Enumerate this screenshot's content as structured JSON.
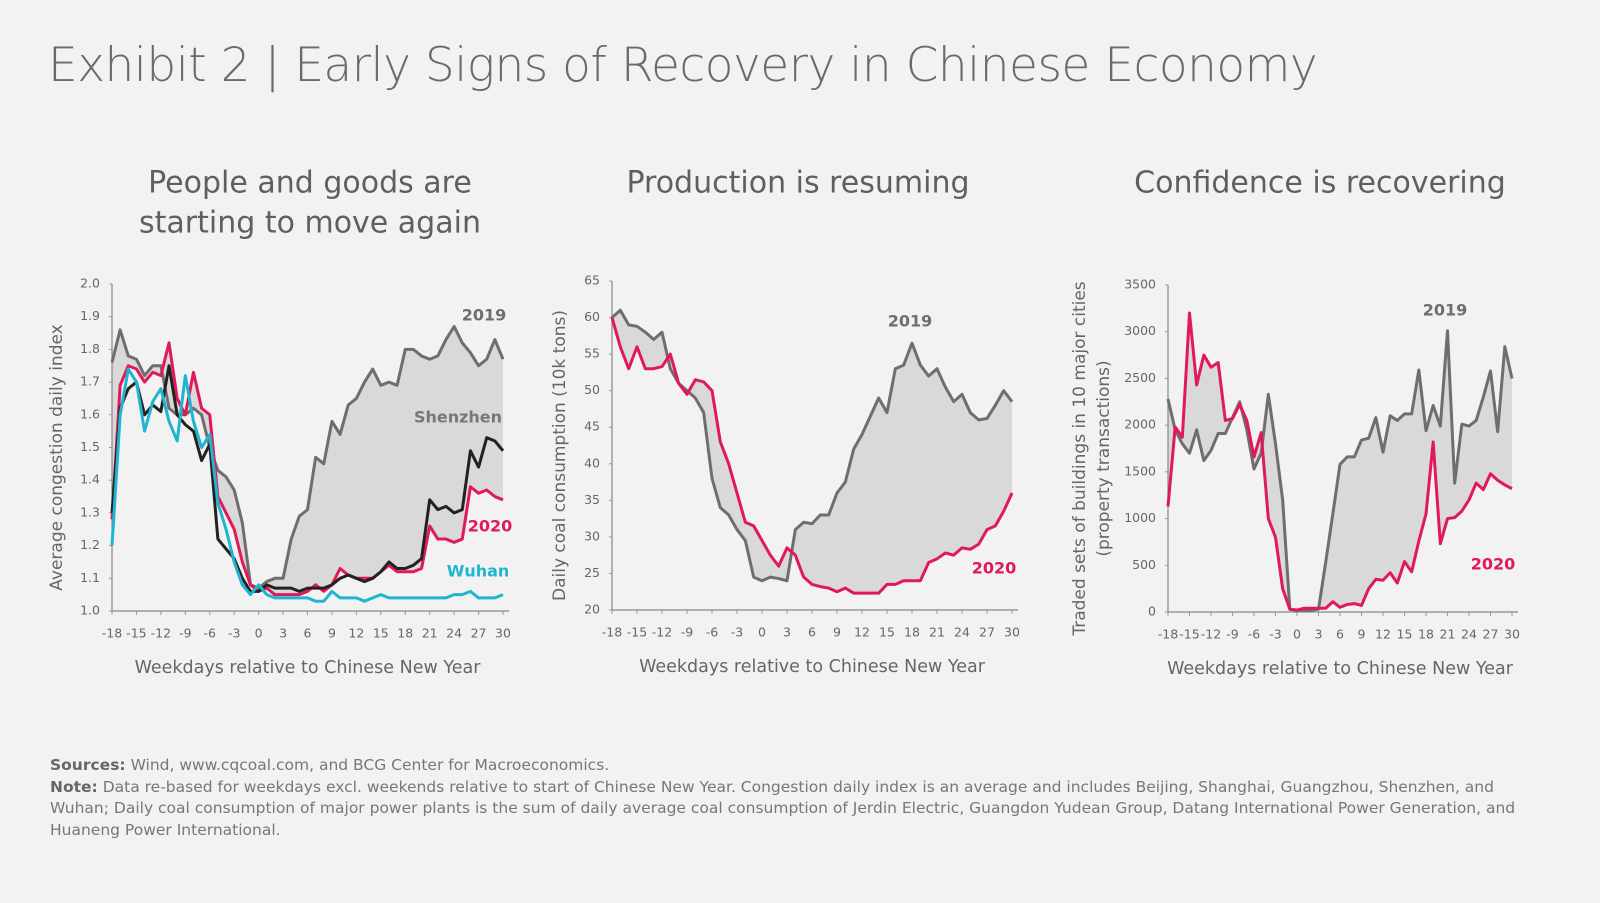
{
  "header": {
    "title": "Exhibit 2 | Early Signs of Recovery in Chinese Economy"
  },
  "footer": {
    "sources_label": "Sources:",
    "sources": "Wind, www.cqcoal.com, and BCG Center for Macroeconomics.",
    "note_label": "Note:",
    "note": "Data re-based for weekdays excl. weekends relative to start of Chinese New Year. Congestion daily index is an average and includes Beijing, Shanghai, Guangzhou, Shenzhen, and Wuhan; Daily coal consumption of major power plants is the sum of daily average coal consumption of Jerdin Electric, Guangdon Yudean Group, Datang International Power Generation, and Huaneng Power International."
  },
  "chart_data": [
    {
      "type": "line",
      "title": [
        "People and goods are",
        "starting to move again"
      ],
      "xlabel": "Weekdays relative to Chinese New Year",
      "ylabel": [
        "Average congestion daily index"
      ],
      "x": [
        -18,
        -17,
        -16,
        -15,
        -14,
        -13,
        -12,
        -11,
        -10,
        -9,
        -8,
        -7,
        -6,
        -5,
        -4,
        -3,
        -2,
        -1,
        0,
        1,
        2,
        3,
        4,
        5,
        6,
        7,
        8,
        9,
        10,
        11,
        12,
        13,
        14,
        15,
        16,
        17,
        18,
        19,
        20,
        21,
        22,
        23,
        24,
        25,
        26,
        27,
        28,
        29,
        30
      ],
      "xlim": [
        -18,
        30
      ],
      "xticks": [
        -18,
        -15,
        -12,
        -9,
        -6,
        -3,
        0,
        3,
        6,
        9,
        12,
        15,
        18,
        21,
        24,
        27,
        30
      ],
      "ylim": [
        1.0,
        2.0
      ],
      "yticks": [
        {
          "value": 1.0,
          "label": "1.0"
        },
        1.1,
        1.2,
        1.3,
        1.4,
        1.5,
        1.6,
        1.7,
        1.8,
        1.9,
        {
          "value": 2.0,
          "label": "2.0"
        }
      ],
      "fill_color": "#d9d9d9",
      "series": [
        {
          "name": "2019",
          "color": "#6e6e6e",
          "values": [
            1.76,
            1.86,
            1.78,
            1.77,
            1.72,
            1.75,
            1.75,
            1.62,
            1.6,
            1.6,
            1.62,
            1.6,
            1.5,
            1.43,
            1.41,
            1.37,
            1.27,
            1.08,
            1.07,
            1.09,
            1.1,
            1.1,
            1.22,
            1.29,
            1.31,
            1.47,
            1.45,
            1.58,
            1.54,
            1.63,
            1.65,
            1.7,
            1.74,
            1.69,
            1.7,
            1.69,
            1.8,
            1.8,
            1.78,
            1.77,
            1.78,
            1.83,
            1.87,
            1.82,
            1.79,
            1.75,
            1.77,
            1.83,
            1.77
          ]
        },
        {
          "name": "2020",
          "color": "#e0195a",
          "values": [
            1.28,
            1.69,
            1.75,
            1.74,
            1.7,
            1.73,
            1.72,
            1.82,
            1.65,
            1.6,
            1.73,
            1.62,
            1.6,
            1.35,
            1.3,
            1.25,
            1.15,
            1.08,
            1.06,
            1.07,
            1.05,
            1.05,
            1.05,
            1.05,
            1.06,
            1.08,
            1.06,
            1.08,
            1.13,
            1.11,
            1.1,
            1.1,
            1.1,
            1.12,
            1.14,
            1.12,
            1.12,
            1.12,
            1.13,
            1.26,
            1.22,
            1.22,
            1.21,
            1.22,
            1.38,
            1.36,
            1.37,
            1.35,
            1.34
          ]
        },
        {
          "name": "Shenzhen",
          "color": "#222222",
          "values": [
            1.3,
            1.62,
            1.68,
            1.7,
            1.6,
            1.63,
            1.61,
            1.75,
            1.6,
            1.57,
            1.55,
            1.46,
            1.51,
            1.22,
            1.19,
            1.16,
            1.1,
            1.06,
            1.06,
            1.08,
            1.07,
            1.07,
            1.07,
            1.06,
            1.07,
            1.07,
            1.07,
            1.08,
            1.1,
            1.11,
            1.1,
            1.09,
            1.1,
            1.12,
            1.15,
            1.13,
            1.13,
            1.14,
            1.16,
            1.34,
            1.31,
            1.32,
            1.3,
            1.31,
            1.49,
            1.44,
            1.53,
            1.52,
            1.49
          ]
        },
        {
          "name": "Wuhan",
          "color": "#1fb5d1",
          "values": [
            1.2,
            1.6,
            1.74,
            1.7,
            1.55,
            1.64,
            1.68,
            1.58,
            1.52,
            1.72,
            1.58,
            1.5,
            1.54,
            1.33,
            1.25,
            1.15,
            1.08,
            1.05,
            1.08,
            1.05,
            1.04,
            1.04,
            1.04,
            1.04,
            1.04,
            1.03,
            1.03,
            1.06,
            1.04,
            1.04,
            1.04,
            1.03,
            1.04,
            1.05,
            1.04,
            1.04,
            1.04,
            1.04,
            1.04,
            1.04,
            1.04,
            1.04,
            1.05,
            1.05,
            1.06,
            1.04,
            1.04,
            1.04,
            1.05
          ]
        }
      ]
    },
    {
      "type": "line",
      "title": [
        "Production is resuming"
      ],
      "xlabel": "Weekdays relative to Chinese New Year",
      "ylabel": [
        "Daily coal consumption (10k tons)"
      ],
      "x": [
        -18,
        -17,
        -16,
        -15,
        -14,
        -13,
        -12,
        -11,
        -10,
        -9,
        -8,
        -7,
        -6,
        -5,
        -4,
        -3,
        -2,
        -1,
        0,
        1,
        2,
        3,
        4,
        5,
        6,
        7,
        8,
        9,
        10,
        11,
        12,
        13,
        14,
        15,
        16,
        17,
        18,
        19,
        20,
        21,
        22,
        23,
        24,
        25,
        26,
        27,
        28,
        29,
        30
      ],
      "xlim": [
        -18,
        30
      ],
      "xticks": [
        -18,
        -15,
        -12,
        -9,
        -6,
        -3,
        0,
        3,
        6,
        9,
        12,
        15,
        18,
        21,
        24,
        27,
        30
      ],
      "ylim": [
        20,
        65
      ],
      "yticks": [
        20,
        25,
        30,
        35,
        40,
        45,
        50,
        55,
        60,
        65
      ],
      "fill_color": "#d9d9d9",
      "series": [
        {
          "name": "2019",
          "color": "#6e6e6e",
          "values": [
            60,
            61,
            59,
            58.8,
            58,
            57,
            58,
            53,
            51,
            50,
            49,
            47,
            38,
            34,
            33,
            31,
            29.5,
            24.5,
            24,
            24.5,
            24.3,
            24,
            31,
            32,
            31.8,
            33,
            33,
            36,
            37.5,
            42,
            44,
            46.5,
            49,
            47,
            53,
            53.5,
            56.5,
            53.5,
            52,
            53,
            50.5,
            48.5,
            49.5,
            47,
            46,
            46.2,
            48,
            50,
            48.5
          ]
        },
        {
          "name": "2020",
          "color": "#e0195a",
          "values": [
            60,
            56,
            53,
            56,
            53,
            53,
            53.3,
            55,
            51,
            49.5,
            51.5,
            51.2,
            50,
            43,
            40,
            36,
            32,
            31.5,
            29.5,
            27.5,
            26,
            28.5,
            27.5,
            24.5,
            23.5,
            23.2,
            23,
            22.5,
            23,
            22.3,
            22.3,
            22.3,
            22.3,
            23.5,
            23.5,
            24,
            24,
            24,
            26.5,
            27,
            27.8,
            27.5,
            28.5,
            28.3,
            29,
            31,
            31.5,
            33.5,
            36
          ]
        }
      ]
    },
    {
      "type": "line",
      "title": [
        "Confidence is recovering"
      ],
      "xlabel": "Weekdays relative to Chinese New Year",
      "ylabel": [
        "Traded sets of buildings in 10 major cities",
        "(property transactions)"
      ],
      "x": [
        -18,
        -17,
        -16,
        -15,
        -14,
        -13,
        -12,
        -11,
        -10,
        -9,
        -8,
        -7,
        -6,
        -5,
        -4,
        -3,
        -2,
        -1,
        0,
        1,
        2,
        3,
        4,
        5,
        6,
        7,
        8,
        9,
        10,
        11,
        12,
        13,
        14,
        15,
        16,
        17,
        18,
        19,
        20,
        21,
        22,
        23,
        24,
        25,
        26,
        27,
        28,
        29,
        30
      ],
      "xlim": [
        -18,
        30
      ],
      "xticks": [
        -18,
        -15,
        -12,
        -9,
        -6,
        -3,
        0,
        3,
        6,
        9,
        12,
        15,
        18,
        21,
        24,
        27,
        30
      ],
      "ylim": [
        0,
        3500
      ],
      "yticks": [
        0,
        500,
        1000,
        1500,
        2000,
        2500,
        3000,
        3500
      ],
      "fill_color": "#d9d9d9",
      "series": [
        {
          "name": "2019",
          "color": "#6e6e6e",
          "values": [
            2280,
            1950,
            1800,
            1700,
            1950,
            1620,
            1730,
            1910,
            1910,
            2080,
            2250,
            1950,
            1530,
            1700,
            2330,
            1800,
            1200,
            30,
            20,
            20,
            20,
            30,
            530,
            1050,
            1580,
            1660,
            1660,
            1840,
            1860,
            2080,
            1710,
            2100,
            2050,
            2120,
            2120,
            2590,
            1940,
            2210,
            1990,
            3010,
            1380,
            2010,
            1990,
            2050,
            2300,
            2580,
            1930,
            2840,
            2500
          ]
        },
        {
          "name": "2020",
          "color": "#e0195a",
          "values": [
            1130,
            1980,
            1870,
            3200,
            2430,
            2750,
            2620,
            2670,
            2050,
            2070,
            2220,
            2050,
            1660,
            1920,
            1000,
            800,
            250,
            30,
            20,
            40,
            40,
            40,
            40,
            110,
            50,
            80,
            90,
            70,
            250,
            350,
            340,
            420,
            310,
            540,
            430,
            760,
            1050,
            1820,
            730,
            1000,
            1010,
            1080,
            1200,
            1380,
            1310,
            1480,
            1410,
            1360,
            1320
          ]
        }
      ]
    }
  ]
}
